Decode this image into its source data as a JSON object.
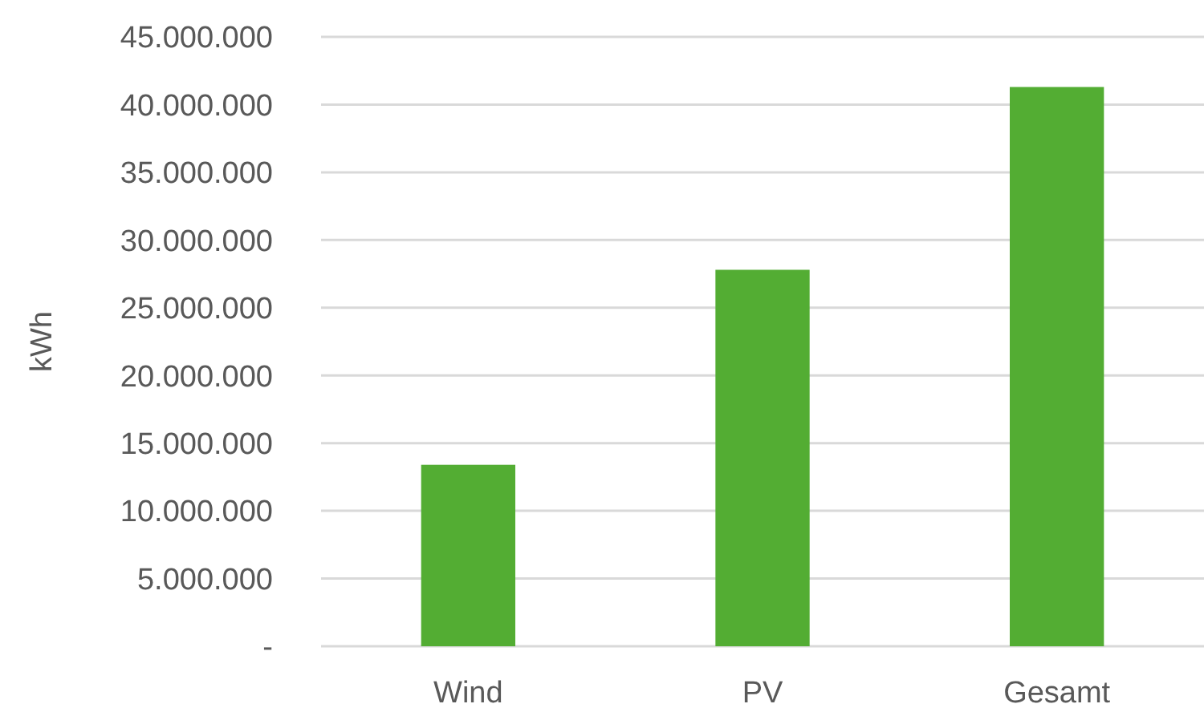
{
  "chart_data": {
    "type": "bar",
    "ylabel": "kWh",
    "categories": [
      "Wind",
      "PV",
      "Gesamt"
    ],
    "values": [
      13400000,
      27800000,
      41300000
    ],
    "color": "#53ad33",
    "ylim": [
      0,
      45000000
    ],
    "yticks": [
      {
        "value": 0,
        "label": "-"
      },
      {
        "value": 5000000,
        "label": "5.000.000"
      },
      {
        "value": 10000000,
        "label": "10.000.000"
      },
      {
        "value": 15000000,
        "label": "15.000.000"
      },
      {
        "value": 20000000,
        "label": "20.000.000"
      },
      {
        "value": 25000000,
        "label": "25.000.000"
      },
      {
        "value": 30000000,
        "label": "30.000.000"
      },
      {
        "value": 35000000,
        "label": "35.000.000"
      },
      {
        "value": 40000000,
        "label": "40.000.000"
      },
      {
        "value": 45000000,
        "label": "45.000.000"
      }
    ],
    "grid": "y"
  }
}
